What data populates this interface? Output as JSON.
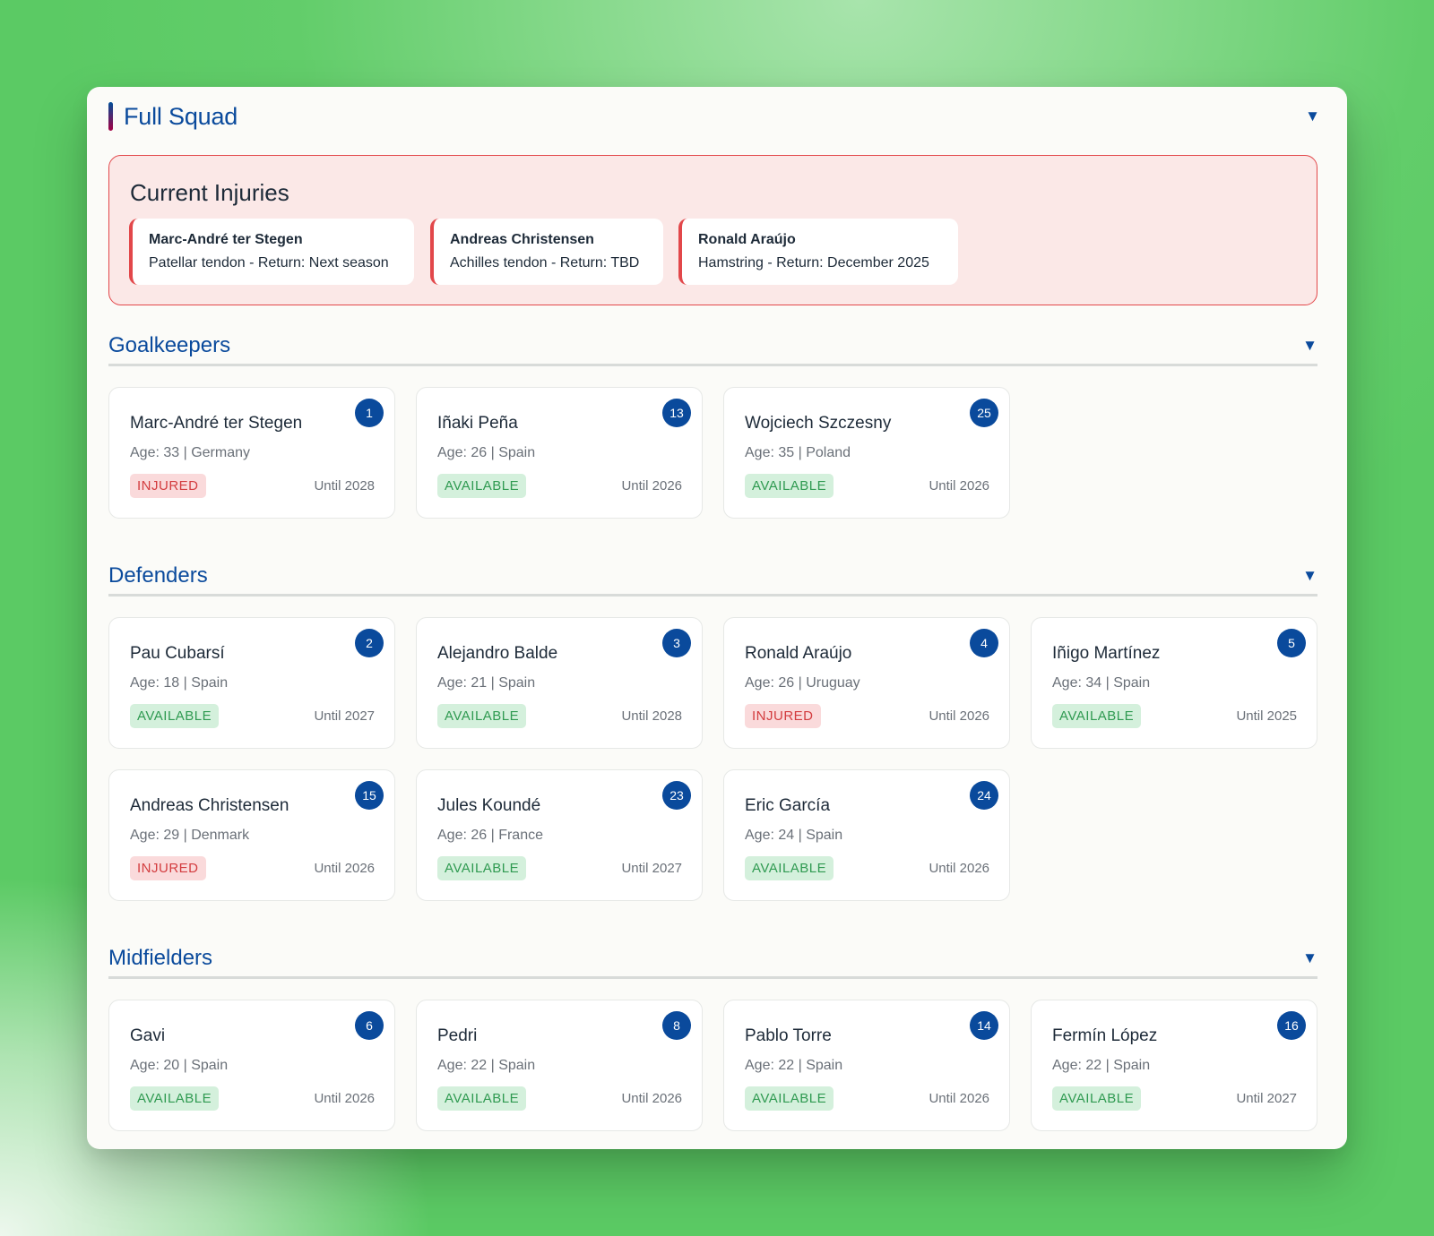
{
  "squad": {
    "title": "Full Squad"
  },
  "injuries": {
    "title": "Current Injuries",
    "items": [
      {
        "name": "Marc-André ter Stegen",
        "detail": "Patellar tendon - Return: Next season"
      },
      {
        "name": "Andreas Christensen",
        "detail": "Achilles tendon - Return: TBD"
      },
      {
        "name": "Ronald Araújo",
        "detail": "Hamstring - Return: December 2025"
      }
    ]
  },
  "sections": [
    {
      "title": "Goalkeepers",
      "players": [
        {
          "number": "1",
          "name": "Marc-André ter Stegen",
          "meta": "Age: 33 | Germany",
          "status": "INJURED",
          "contract": "Until 2028"
        },
        {
          "number": "13",
          "name": "Iñaki Peña",
          "meta": "Age: 26 | Spain",
          "status": "AVAILABLE",
          "contract": "Until 2026"
        },
        {
          "number": "25",
          "name": "Wojciech Szczesny",
          "meta": "Age: 35 | Poland",
          "status": "AVAILABLE",
          "contract": "Until 2026"
        }
      ]
    },
    {
      "title": "Defenders",
      "players": [
        {
          "number": "2",
          "name": "Pau Cubarsí",
          "meta": "Age: 18 | Spain",
          "status": "AVAILABLE",
          "contract": "Until 2027"
        },
        {
          "number": "3",
          "name": "Alejandro Balde",
          "meta": "Age: 21 | Spain",
          "status": "AVAILABLE",
          "contract": "Until 2028"
        },
        {
          "number": "4",
          "name": "Ronald Araújo",
          "meta": "Age: 26 | Uruguay",
          "status": "INJURED",
          "contract": "Until 2026"
        },
        {
          "number": "5",
          "name": "Iñigo Martínez",
          "meta": "Age: 34 | Spain",
          "status": "AVAILABLE",
          "contract": "Until 2025"
        },
        {
          "number": "15",
          "name": "Andreas Christensen",
          "meta": "Age: 29 | Denmark",
          "status": "INJURED",
          "contract": "Until 2026"
        },
        {
          "number": "23",
          "name": "Jules Koundé",
          "meta": "Age: 26 | France",
          "status": "AVAILABLE",
          "contract": "Until 2027"
        },
        {
          "number": "24",
          "name": "Eric García",
          "meta": "Age: 24 | Spain",
          "status": "AVAILABLE",
          "contract": "Until 2026"
        }
      ]
    },
    {
      "title": "Midfielders",
      "players": [
        {
          "number": "6",
          "name": "Gavi",
          "meta": "Age: 20 | Spain",
          "status": "AVAILABLE",
          "contract": "Until 2026"
        },
        {
          "number": "8",
          "name": "Pedri",
          "meta": "Age: 22 | Spain",
          "status": "AVAILABLE",
          "contract": "Until 2026"
        },
        {
          "number": "14",
          "name": "Pablo Torre",
          "meta": "Age: 22 | Spain",
          "status": "AVAILABLE",
          "contract": "Until 2026"
        },
        {
          "number": "16",
          "name": "Fermín López",
          "meta": "Age: 22 | Spain",
          "status": "AVAILABLE",
          "contract": "Until 2027"
        }
      ]
    }
  ],
  "icons": {
    "collapse": "chevron-down-icon"
  },
  "colors": {
    "primary": "#0a4a9c",
    "injured": "#e2474a",
    "available": "#2f9a51"
  }
}
